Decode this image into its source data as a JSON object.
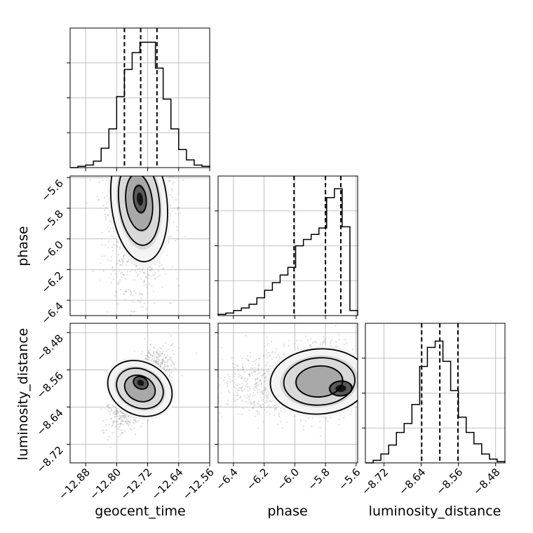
{
  "chart_data": [
    {
      "type": "histogram",
      "panel": "geocent_time marginal",
      "x_param": "geocent_time",
      "xlim": [
        -12.92,
        -12.56
      ],
      "ylim": [
        0,
        1.08
      ],
      "bin_edges": [
        -12.92,
        -12.9,
        -12.88,
        -12.86,
        -12.84,
        -12.82,
        -12.8,
        -12.78,
        -12.76,
        -12.74,
        -12.72,
        -12.7,
        -12.68,
        -12.66,
        -12.64,
        -12.62,
        -12.6,
        -12.58,
        -12.56
      ],
      "counts": [
        0.0,
        0.01,
        0.02,
        0.05,
        0.15,
        0.3,
        0.55,
        0.76,
        0.89,
        0.97,
        0.97,
        0.77,
        0.53,
        0.3,
        0.14,
        0.06,
        0.02,
        0.01
      ],
      "quantiles": [
        -12.78,
        -12.738,
        -12.696
      ]
    },
    {
      "type": "histogram",
      "panel": "phase marginal",
      "x_param": "phase",
      "xlim": [
        -6.5,
        -5.59
      ],
      "ylim": [
        0,
        1.1
      ],
      "bin_edges": [
        -6.5,
        -6.4494,
        -6.3989,
        -6.3483,
        -6.2978,
        -6.2472,
        -6.1967,
        -6.1461,
        -6.0956,
        -6.045,
        -5.9944,
        -5.9439,
        -5.8933,
        -5.8428,
        -5.7922,
        -5.7417,
        -5.6911,
        -5.6406,
        -5.59
      ],
      "counts": [
        0.01,
        0.02,
        0.04,
        0.06,
        0.09,
        0.14,
        0.2,
        0.26,
        0.32,
        0.38,
        0.55,
        0.6,
        0.64,
        0.69,
        0.93,
        1.0,
        0.7,
        0.04
      ],
      "quantiles": [
        -6.005,
        -5.8,
        -5.7
      ]
    },
    {
      "type": "histogram",
      "panel": "luminosity_distance marginal",
      "x_param": "luminosity_distance",
      "xlim": [
        -8.76,
        -8.46
      ],
      "ylim": [
        0,
        1.1
      ],
      "bin_edges": [
        -8.76,
        -8.7433,
        -8.7267,
        -8.71,
        -8.6933,
        -8.6767,
        -8.66,
        -8.6433,
        -8.6267,
        -8.61,
        -8.5933,
        -8.5767,
        -8.56,
        -8.5433,
        -8.5267,
        -8.51,
        -8.4933,
        -8.4767,
        -8.46
      ],
      "counts": [
        0.0,
        0.02,
        0.07,
        0.14,
        0.24,
        0.31,
        0.46,
        0.76,
        0.91,
        0.96,
        0.8,
        0.57,
        0.36,
        0.24,
        0.15,
        0.07,
        0.03,
        0.01
      ],
      "quantiles": [
        -8.639,
        -8.6,
        -8.561
      ]
    },
    {
      "type": "scatter",
      "panel": "phase vs geocent_time",
      "x_param": "geocent_time",
      "y_param": "phase",
      "xlim": [
        -12.92,
        -12.56
      ],
      "ylim": [
        -6.5,
        -5.59
      ],
      "density_center": [
        -12.742,
        -5.76
      ],
      "peak": [
        -12.74,
        -5.74
      ],
      "contours": "4 nested density contours"
    },
    {
      "type": "scatter",
      "panel": "luminosity_distance vs geocent_time",
      "x_param": "geocent_time",
      "y_param": "luminosity_distance",
      "xlim": [
        -12.92,
        -12.56
      ],
      "ylim": [
        -8.76,
        -8.46
      ],
      "density_center": [
        -12.74,
        -8.6
      ],
      "peak": [
        -12.738,
        -8.588
      ],
      "correlation": "positive",
      "contours": "4 nested density contours"
    },
    {
      "type": "scatter",
      "panel": "luminosity_distance vs phase",
      "x_param": "phase",
      "y_param": "luminosity_distance",
      "xlim": [
        -6.5,
        -5.59
      ],
      "ylim": [
        -8.76,
        -8.46
      ],
      "density_center": [
        -5.84,
        -8.585
      ],
      "peak": [
        -5.7,
        -8.6
      ],
      "contours": "4 nested density contours"
    }
  ],
  "axes": {
    "geocent_time": {
      "label": "geocent_time",
      "ticks": [
        -12.88,
        -12.8,
        -12.72,
        -12.64,
        -12.56
      ],
      "tick_labels": [
        "−12.88",
        "−12.80",
        "−12.72",
        "−12.64",
        "−12.56"
      ]
    },
    "phase": {
      "label": "phase",
      "ticks": [
        -6.4,
        -6.2,
        -6.0,
        -5.8,
        -5.6
      ],
      "tick_labels": [
        "−6.4",
        "−6.2",
        "−6.0",
        "−5.8",
        "−5.6"
      ]
    },
    "luminosity_distance": {
      "label": "luminosity_distance",
      "ticks": [
        -8.72,
        -8.64,
        -8.56,
        -8.48
      ],
      "tick_labels": [
        "−8.72",
        "−8.64",
        "−8.56",
        "−8.48"
      ]
    }
  },
  "style": {
    "line_color": "#000000",
    "grid_color": "#b0b0b0",
    "scatter_color": "#9a9a9a"
  }
}
